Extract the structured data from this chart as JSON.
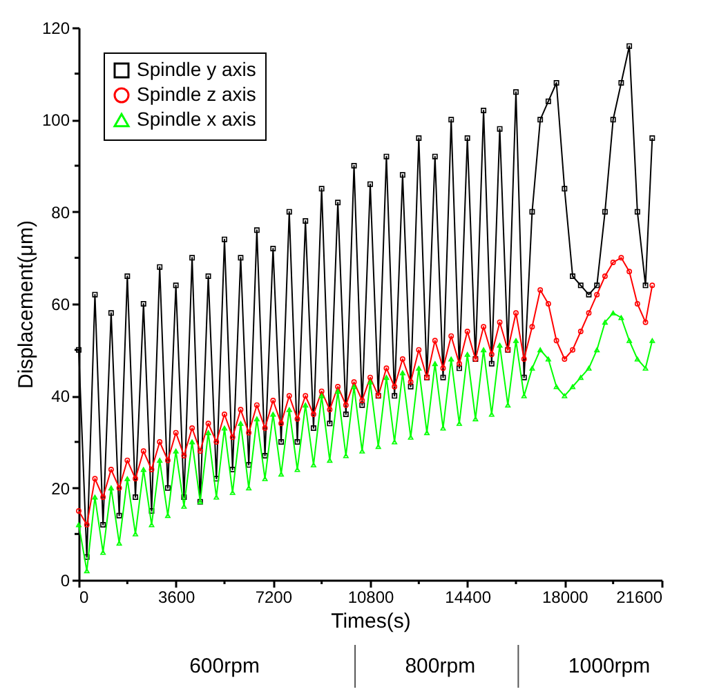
{
  "chart_data": {
    "type": "line",
    "xlabel": "Times(s)",
    "ylabel": "Displacement(μm)",
    "xlim": [
      0,
      21600
    ],
    "ylim": [
      0,
      120
    ],
    "xticks": [
      0,
      {
        "value": 1800,
        "label": null
      },
      3600,
      {
        "value": 5400,
        "label": null
      },
      7200,
      {
        "value": 9000,
        "label": null
      },
      10800,
      {
        "value": 12600,
        "label": null
      },
      14400,
      {
        "value": 16200,
        "label": null
      },
      18000,
      {
        "value": 19800,
        "label": null
      },
      21600
    ],
    "yticks": [
      0,
      {
        "value": 10,
        "label": null
      },
      20,
      {
        "value": 30,
        "label": null
      },
      40,
      {
        "value": 50,
        "label": null
      },
      60,
      {
        "value": 70,
        "label": null
      },
      80,
      {
        "value": 90,
        "label": null
      },
      100,
      {
        "value": 110,
        "label": null
      },
      120
    ],
    "x": [
      0,
      300,
      600,
      900,
      1200,
      1500,
      1800,
      2100,
      2400,
      2700,
      3000,
      3300,
      3600,
      3900,
      4200,
      4500,
      4800,
      5100,
      5400,
      5700,
      6000,
      6300,
      6600,
      6900,
      7200,
      7500,
      7800,
      8100,
      8400,
      8700,
      9000,
      9300,
      9600,
      9900,
      10200,
      10500,
      10800,
      11100,
      11400,
      11700,
      12000,
      12300,
      12600,
      12900,
      13200,
      13500,
      13800,
      14100,
      14400,
      14700,
      15000,
      15300,
      15600,
      15900,
      16200,
      16500,
      16800,
      17100,
      17400,
      17700,
      18000,
      18300,
      18600,
      18900,
      19200,
      19500,
      19800,
      20100,
      20400,
      20700,
      21000,
      21250
    ],
    "series": [
      {
        "name": "Spindle y axis",
        "color": "#000000",
        "marker": "square",
        "values": [
          50,
          5,
          62,
          12,
          58,
          14,
          66,
          18,
          60,
          15,
          68,
          20,
          64,
          18,
          70,
          17,
          66,
          22,
          74,
          24,
          70,
          25,
          76,
          27,
          72,
          30,
          80,
          30,
          78,
          33,
          85,
          34,
          82,
          36,
          90,
          38,
          86,
          40,
          92,
          40,
          88,
          42,
          96,
          44,
          92,
          44,
          100,
          46,
          96,
          48,
          102,
          47,
          98,
          50,
          106,
          44,
          80,
          100,
          104,
          108,
          85,
          66,
          64,
          62,
          64,
          80,
          100,
          108,
          116,
          80,
          64,
          96
        ]
      },
      {
        "name": "Spindle z axis",
        "color": "#ff0000",
        "marker": "circle",
        "values": [
          15,
          12,
          22,
          18,
          24,
          20,
          26,
          22,
          28,
          24,
          30,
          26,
          32,
          27,
          33,
          28,
          34,
          30,
          36,
          31,
          37,
          32,
          38,
          33,
          39,
          34,
          40,
          35,
          40,
          36,
          41,
          37,
          42,
          38,
          43,
          39,
          44,
          40,
          46,
          42,
          48,
          43,
          50,
          44,
          52,
          46,
          53,
          47,
          54,
          48,
          55,
          49,
          56,
          50,
          58,
          48,
          55,
          63,
          60,
          52,
          48,
          50,
          54,
          58,
          62,
          66,
          69,
          70,
          67,
          60,
          56,
          64
        ]
      },
      {
        "name": "Spindle x axis",
        "color": "#00ff00",
        "marker": "triangle",
        "values": [
          12,
          2,
          18,
          6,
          20,
          8,
          22,
          10,
          24,
          12,
          26,
          14,
          28,
          16,
          30,
          17,
          32,
          18,
          33,
          19,
          34,
          20,
          35,
          22,
          36,
          23,
          37,
          24,
          38,
          25,
          40,
          26,
          41,
          27,
          42,
          28,
          43,
          29,
          44,
          30,
          45,
          31,
          46,
          32,
          47,
          33,
          48,
          34,
          49,
          35,
          50,
          36,
          51,
          38,
          52,
          40,
          46,
          50,
          48,
          42,
          40,
          42,
          44,
          46,
          50,
          56,
          58,
          57,
          52,
          48,
          46,
          52
        ]
      }
    ],
    "legend": "top left",
    "grid": false,
    "line_style": "solid",
    "annotations": [
      "600rpm",
      "800rpm",
      "1000rpm"
    ]
  }
}
